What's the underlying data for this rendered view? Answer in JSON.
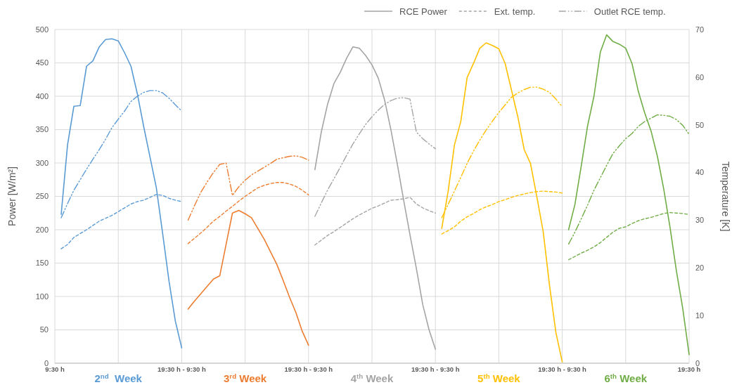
{
  "chart_data": {
    "type": "line",
    "ylabel": "Power [W/m²]",
    "y2label": "Temperature [K]",
    "categories": [
      "9:30 h",
      null,
      null,
      null,
      null,
      null,
      null,
      null,
      null,
      null,
      null,
      null,
      null,
      null,
      null,
      null,
      null,
      null,
      null,
      null,
      "19:30 h - 9:30 h",
      null,
      null,
      null,
      null,
      null,
      null,
      null,
      null,
      null,
      null,
      null,
      null,
      null,
      null,
      null,
      null,
      null,
      null,
      null,
      "19:30 h - 9:30 h",
      null,
      null,
      null,
      null,
      null,
      null,
      null,
      null,
      null,
      null,
      null,
      null,
      null,
      null,
      null,
      null,
      null,
      null,
      null,
      "19:30 h - 9:30 h",
      null,
      null,
      null,
      null,
      null,
      null,
      null,
      null,
      null,
      null,
      null,
      null,
      null,
      null,
      null,
      null,
      null,
      null,
      null,
      "19:30 h - 9:30 h",
      null,
      null,
      null,
      null,
      null,
      null,
      null,
      null,
      null,
      null,
      null,
      null,
      null,
      null,
      null,
      null,
      null,
      null,
      null,
      "19:30 h"
    ],
    "ylim": [
      0,
      500
    ],
    "yticks": [
      0,
      50,
      100,
      150,
      200,
      250,
      300,
      350,
      400,
      450,
      500
    ],
    "y2lim": [
      0,
      70
    ],
    "y2ticks": [
      0,
      10,
      20,
      30,
      40,
      50,
      60,
      70
    ],
    "grid": true,
    "legend": "top right",
    "annotations": [
      "2$^{nd}$  Week",
      "3$^{rd}$ Week",
      "4$^{th}$ Week",
      "5$^{th}$ Week",
      "6$^{th}$ Week"
    ],
    "series": [
      {
        "color": "#5b9bd5",
        "line_style": "solid",
        "values": [
          null,
          223,
          327,
          385,
          386,
          445,
          453,
          474,
          485,
          486,
          483,
          465,
          445,
          404,
          355,
          309,
          263,
          194,
          123,
          63,
          23,
          null,
          null,
          null,
          null,
          null,
          null,
          null,
          null,
          null,
          null,
          null,
          null,
          null,
          null,
          null,
          null,
          null,
          null,
          null,
          null,
          null,
          null,
          null,
          null,
          null,
          null,
          null,
          null,
          null,
          null,
          null,
          null,
          null,
          null,
          null,
          null,
          null,
          null,
          null,
          null,
          null,
          null,
          null,
          null,
          null,
          null,
          null,
          null,
          null,
          null,
          null,
          null,
          null,
          null,
          null,
          null,
          null,
          null,
          null,
          null,
          null,
          null,
          null,
          null,
          null,
          null,
          null,
          null,
          null,
          null,
          null,
          null,
          null,
          null,
          null,
          null,
          null,
          null,
          null,
          null
        ]
      },
      {
        "color": "#5b9bd5",
        "axis": "y2",
        "line_style": "dashed",
        "values": [
          null,
          24.0,
          24.9,
          26.4,
          27.2,
          28.0,
          28.9,
          29.8,
          30.4,
          31.0,
          31.8,
          32.6,
          33.4,
          33.9,
          34.2,
          34.8,
          35.4,
          35.2,
          34.6,
          34.2,
          33.9,
          null,
          null,
          null,
          null,
          null,
          null,
          null,
          null,
          null,
          null,
          null,
          null,
          null,
          null,
          null,
          null,
          null,
          null,
          null,
          null,
          null,
          null,
          null,
          null,
          null,
          null,
          null,
          null,
          null,
          null,
          null,
          null,
          null,
          null,
          null,
          null,
          null,
          null,
          null,
          null,
          null,
          null,
          null,
          null,
          null,
          null,
          null,
          null,
          null,
          null,
          null,
          null,
          null,
          null,
          null,
          null,
          null,
          null,
          null,
          null,
          null,
          null,
          null,
          null,
          null,
          null,
          null,
          null,
          null,
          null,
          null,
          null,
          null,
          null,
          null,
          null,
          null,
          null,
          null,
          null
        ]
      },
      {
        "color": "#5b9bd5",
        "axis": "y2",
        "line_style": "dashdot",
        "values": [
          null,
          30.5,
          33.5,
          36.3,
          38.5,
          40.7,
          42.8,
          44.8,
          47.0,
          49.4,
          51.2,
          52.9,
          54.9,
          56.0,
          56.8,
          57.2,
          57.2,
          56.7,
          55.6,
          54.2,
          52.9,
          null,
          null,
          null,
          null,
          null,
          null,
          null,
          null,
          null,
          null,
          null,
          null,
          null,
          null,
          null,
          null,
          null,
          null,
          null,
          null,
          null,
          null,
          null,
          null,
          null,
          null,
          null,
          null,
          null,
          null,
          null,
          null,
          null,
          null,
          null,
          null,
          null,
          null,
          null,
          null,
          null,
          null,
          null,
          null,
          null,
          null,
          null,
          null,
          null,
          null,
          null,
          null,
          null,
          null,
          null,
          null,
          null,
          null,
          null,
          null,
          null,
          null,
          null,
          null,
          null,
          null,
          null,
          null,
          null,
          null,
          null,
          null,
          null,
          null,
          null,
          null,
          null,
          null,
          null,
          null
        ]
      },
      {
        "color": "#ed7d31",
        "line_style": "solid",
        "values": [
          null,
          null,
          null,
          null,
          null,
          null,
          null,
          null,
          null,
          null,
          null,
          null,
          null,
          null,
          null,
          null,
          null,
          null,
          null,
          null,
          null,
          81,
          93,
          104,
          115,
          126,
          131,
          178,
          225,
          229,
          224,
          218,
          202,
          186,
          167,
          148,
          124,
          99,
          76,
          48,
          27,
          null,
          null,
          null,
          null,
          null,
          null,
          null,
          null,
          null,
          null,
          null,
          null,
          null,
          null,
          null,
          null,
          null,
          null,
          null,
          null,
          null,
          null,
          null,
          null,
          null,
          null,
          null,
          null,
          null,
          null,
          null,
          null,
          null,
          null,
          null,
          null,
          null,
          null,
          null,
          null,
          null,
          null,
          null,
          null,
          null,
          null,
          null,
          null,
          null,
          null,
          null,
          null,
          null,
          null,
          null,
          null,
          null,
          null,
          null,
          null
        ]
      },
      {
        "color": "#ed7d31",
        "axis": "y2",
        "line_style": "dashed",
        "values": [
          null,
          null,
          null,
          null,
          null,
          null,
          null,
          null,
          null,
          null,
          null,
          null,
          null,
          null,
          null,
          null,
          null,
          null,
          null,
          null,
          null,
          25.1,
          26.2,
          27.3,
          28.5,
          29.8,
          30.8,
          31.9,
          32.9,
          34.0,
          35.0,
          35.9,
          36.8,
          37.3,
          37.7,
          37.9,
          37.9,
          37.6,
          37.1,
          36.3,
          35.3,
          null,
          null,
          null,
          null,
          null,
          null,
          null,
          null,
          null,
          null,
          null,
          null,
          null,
          null,
          null,
          null,
          null,
          null,
          null,
          null,
          null,
          null,
          null,
          null,
          null,
          null,
          null,
          null,
          null,
          null,
          null,
          null,
          null,
          null,
          null,
          null,
          null,
          null,
          null,
          null,
          null,
          null,
          null,
          null,
          null,
          null,
          null,
          null,
          null,
          null,
          null,
          null,
          null,
          null,
          null,
          null,
          null,
          null,
          null,
          null
        ]
      },
      {
        "color": "#ed7d31",
        "axis": "y2",
        "line_style": "dashdot",
        "values": [
          null,
          null,
          null,
          null,
          null,
          null,
          null,
          null,
          null,
          null,
          null,
          null,
          null,
          null,
          null,
          null,
          null,
          null,
          null,
          null,
          null,
          30.0,
          33.0,
          35.8,
          38.0,
          40.0,
          41.7,
          42.0,
          35.2,
          37.0,
          38.4,
          39.5,
          40.3,
          41.1,
          41.9,
          42.8,
          43.1,
          43.4,
          43.5,
          43.2,
          42.6,
          null,
          null,
          null,
          null,
          null,
          null,
          null,
          null,
          null,
          null,
          null,
          null,
          null,
          null,
          null,
          null,
          null,
          null,
          null,
          null,
          null,
          null,
          null,
          null,
          null,
          null,
          null,
          null,
          null,
          null,
          null,
          null,
          null,
          null,
          null,
          null,
          null,
          null,
          null,
          null,
          null,
          null,
          null,
          null,
          null,
          null,
          null,
          null,
          null,
          null,
          null,
          null,
          null,
          null,
          null,
          null,
          null,
          null,
          null,
          null
        ]
      },
      {
        "name": "RCE Power",
        "color": "#a5a5a5",
        "line_style": "solid",
        "values": [
          null,
          null,
          null,
          null,
          null,
          null,
          null,
          null,
          null,
          null,
          null,
          null,
          null,
          null,
          null,
          null,
          null,
          null,
          null,
          null,
          null,
          null,
          null,
          null,
          null,
          null,
          null,
          null,
          null,
          null,
          null,
          null,
          null,
          null,
          null,
          null,
          null,
          null,
          null,
          null,
          null,
          290,
          346,
          388,
          419,
          436,
          457,
          474,
          472,
          461,
          447,
          427,
          394,
          349,
          298,
          244,
          192,
          142,
          88,
          50,
          21,
          null,
          null,
          null,
          null,
          null,
          null,
          null,
          null,
          null,
          null,
          null,
          null,
          null,
          null,
          null,
          null,
          null,
          null,
          null,
          null,
          null,
          null,
          null,
          null,
          null,
          null,
          null,
          null,
          null,
          null,
          null,
          null,
          null,
          null,
          null,
          null,
          null,
          null,
          null,
          null
        ]
      },
      {
        "name": "Ext. temp.",
        "color": "#a5a5a5",
        "axis": "y2",
        "line_style": "dashed",
        "values": [
          null,
          null,
          null,
          null,
          null,
          null,
          null,
          null,
          null,
          null,
          null,
          null,
          null,
          null,
          null,
          null,
          null,
          null,
          null,
          null,
          null,
          null,
          null,
          null,
          null,
          null,
          null,
          null,
          null,
          null,
          null,
          null,
          null,
          null,
          null,
          null,
          null,
          null,
          null,
          null,
          null,
          24.8,
          25.8,
          26.8,
          27.6,
          28.5,
          29.4,
          30.3,
          31.1,
          31.8,
          32.5,
          33.0,
          33.6,
          34.2,
          34.3,
          34.5,
          34.8,
          33.4,
          32.6,
          32.0,
          31.5,
          null,
          null,
          null,
          null,
          null,
          null,
          null,
          null,
          null,
          null,
          null,
          null,
          null,
          null,
          null,
          null,
          null,
          null,
          null,
          null,
          null,
          null,
          null,
          null,
          null,
          null,
          null,
          null,
          null,
          null,
          null,
          null,
          null,
          null,
          null,
          null,
          null,
          null,
          null,
          null
        ]
      },
      {
        "name": "Outlet RCE temp.",
        "color": "#a5a5a5",
        "axis": "y2",
        "line_style": "dashdot",
        "values": [
          null,
          null,
          null,
          null,
          null,
          null,
          null,
          null,
          null,
          null,
          null,
          null,
          null,
          null,
          null,
          null,
          null,
          null,
          null,
          null,
          null,
          null,
          null,
          null,
          null,
          null,
          null,
          null,
          null,
          null,
          null,
          null,
          null,
          null,
          null,
          null,
          null,
          null,
          null,
          null,
          null,
          30.8,
          33.6,
          36.3,
          38.7,
          41.1,
          43.6,
          46.0,
          48.1,
          50.1,
          51.7,
          53.1,
          54.3,
          55.1,
          55.6,
          55.7,
          55.4,
          48.5,
          47.1,
          46.0,
          45.0,
          null,
          null,
          null,
          null,
          null,
          null,
          null,
          null,
          null,
          null,
          null,
          null,
          null,
          null,
          null,
          null,
          null,
          null,
          null,
          null,
          null,
          null,
          null,
          null,
          null,
          null,
          null,
          null,
          null,
          null,
          null,
          null,
          null,
          null,
          null,
          null,
          null,
          null,
          null,
          null
        ]
      },
      {
        "color": "#ffc000",
        "line_style": "solid",
        "values": [
          null,
          null,
          null,
          null,
          null,
          null,
          null,
          null,
          null,
          null,
          null,
          null,
          null,
          null,
          null,
          null,
          null,
          null,
          null,
          null,
          null,
          null,
          null,
          null,
          null,
          null,
          null,
          null,
          null,
          null,
          null,
          null,
          null,
          null,
          null,
          null,
          null,
          null,
          null,
          null,
          null,
          null,
          null,
          null,
          null,
          null,
          null,
          null,
          null,
          null,
          null,
          null,
          null,
          null,
          null,
          null,
          null,
          null,
          null,
          null,
          null,
          202,
          257,
          327,
          362,
          428,
          449,
          472,
          480,
          476,
          471,
          449,
          409,
          369,
          320,
          299,
          249,
          197,
          116,
          46,
          2,
          null,
          null,
          null,
          null,
          null,
          null,
          null,
          null,
          null,
          null,
          null,
          null,
          null,
          null,
          null,
          null,
          null,
          null,
          null,
          null
        ]
      },
      {
        "color": "#ffc000",
        "axis": "y2",
        "line_style": "dashed",
        "values": [
          null,
          null,
          null,
          null,
          null,
          null,
          null,
          null,
          null,
          null,
          null,
          null,
          null,
          null,
          null,
          null,
          null,
          null,
          null,
          null,
          null,
          null,
          null,
          null,
          null,
          null,
          null,
          null,
          null,
          null,
          null,
          null,
          null,
          null,
          null,
          null,
          null,
          null,
          null,
          null,
          null,
          null,
          null,
          null,
          null,
          null,
          null,
          null,
          null,
          null,
          null,
          null,
          null,
          null,
          null,
          null,
          null,
          null,
          null,
          null,
          null,
          27.1,
          27.8,
          28.6,
          29.8,
          30.7,
          31.4,
          32.2,
          32.8,
          33.3,
          33.9,
          34.3,
          34.8,
          35.2,
          35.5,
          35.8,
          36.0,
          36.1,
          36.0,
          35.9,
          35.7,
          null,
          null,
          null,
          null,
          null,
          null,
          null,
          null,
          null,
          null,
          null,
          null,
          null,
          null,
          null,
          null,
          null,
          null,
          null,
          null
        ]
      },
      {
        "color": "#ffc000",
        "axis": "y2",
        "line_style": "dashdot",
        "values": [
          null,
          null,
          null,
          null,
          null,
          null,
          null,
          null,
          null,
          null,
          null,
          null,
          null,
          null,
          null,
          null,
          null,
          null,
          null,
          null,
          null,
          null,
          null,
          null,
          null,
          null,
          null,
          null,
          null,
          null,
          null,
          null,
          null,
          null,
          null,
          null,
          null,
          null,
          null,
          null,
          null,
          null,
          null,
          null,
          null,
          null,
          null,
          null,
          null,
          null,
          null,
          null,
          null,
          null,
          null,
          null,
          null,
          null,
          null,
          null,
          null,
          30.5,
          33.3,
          36.1,
          39.0,
          41.9,
          44.5,
          46.8,
          48.9,
          50.8,
          52.6,
          54.2,
          55.8,
          56.7,
          57.4,
          57.9,
          57.9,
          57.5,
          56.8,
          55.4,
          53.8,
          null,
          null,
          null,
          null,
          null,
          null,
          null,
          null,
          null,
          null,
          null,
          null,
          null,
          null,
          null,
          null,
          null,
          null,
          null,
          null
        ]
      },
      {
        "color": "#70ad47",
        "line_style": "solid",
        "values": [
          null,
          null,
          null,
          null,
          null,
          null,
          null,
          null,
          null,
          null,
          null,
          null,
          null,
          null,
          null,
          null,
          null,
          null,
          null,
          null,
          null,
          null,
          null,
          null,
          null,
          null,
          null,
          null,
          null,
          null,
          null,
          null,
          null,
          null,
          null,
          null,
          null,
          null,
          null,
          null,
          null,
          null,
          null,
          null,
          null,
          null,
          null,
          null,
          null,
          null,
          null,
          null,
          null,
          null,
          null,
          null,
          null,
          null,
          null,
          null,
          null,
          null,
          null,
          null,
          null,
          null,
          null,
          null,
          null,
          null,
          null,
          null,
          null,
          null,
          null,
          null,
          null,
          null,
          null,
          null,
          null,
          200,
          238,
          296,
          356,
          400,
          466,
          492,
          482,
          478,
          472,
          449,
          407,
          375,
          348,
          310,
          261,
          203,
          138,
          82,
          13
        ]
      },
      {
        "color": "#70ad47",
        "axis": "y2",
        "line_style": "dashed",
        "values": [
          null,
          null,
          null,
          null,
          null,
          null,
          null,
          null,
          null,
          null,
          null,
          null,
          null,
          null,
          null,
          null,
          null,
          null,
          null,
          null,
          null,
          null,
          null,
          null,
          null,
          null,
          null,
          null,
          null,
          null,
          null,
          null,
          null,
          null,
          null,
          null,
          null,
          null,
          null,
          null,
          null,
          null,
          null,
          null,
          null,
          null,
          null,
          null,
          null,
          null,
          null,
          null,
          null,
          null,
          null,
          null,
          null,
          null,
          null,
          null,
          null,
          null,
          null,
          null,
          null,
          null,
          null,
          null,
          null,
          null,
          null,
          null,
          null,
          null,
          null,
          null,
          null,
          null,
          null,
          null,
          null,
          21.7,
          22.4,
          23.1,
          23.7,
          24.4,
          25.3,
          26.4,
          27.5,
          28.3,
          28.6,
          29.3,
          29.9,
          30.3,
          30.6,
          31.0,
          31.4,
          31.6,
          31.5,
          31.4,
          31.2
        ]
      },
      {
        "color": "#70ad47",
        "axis": "y2",
        "line_style": "dashdot",
        "values": [
          null,
          null,
          null,
          null,
          null,
          null,
          null,
          null,
          null,
          null,
          null,
          null,
          null,
          null,
          null,
          null,
          null,
          null,
          null,
          null,
          null,
          null,
          null,
          null,
          null,
          null,
          null,
          null,
          null,
          null,
          null,
          null,
          null,
          null,
          null,
          null,
          null,
          null,
          null,
          null,
          null,
          null,
          null,
          null,
          null,
          null,
          null,
          null,
          null,
          null,
          null,
          null,
          null,
          null,
          null,
          null,
          null,
          null,
          null,
          null,
          null,
          null,
          null,
          null,
          null,
          null,
          null,
          null,
          null,
          null,
          null,
          null,
          null,
          null,
          null,
          null,
          null,
          null,
          null,
          null,
          null,
          25.0,
          27.5,
          30.3,
          33.2,
          36.3,
          38.9,
          41.5,
          44.0,
          45.6,
          47.1,
          48.2,
          49.7,
          50.7,
          51.4,
          52.1,
          52.0,
          51.8,
          51.1,
          49.9,
          48.0
        ]
      }
    ]
  }
}
